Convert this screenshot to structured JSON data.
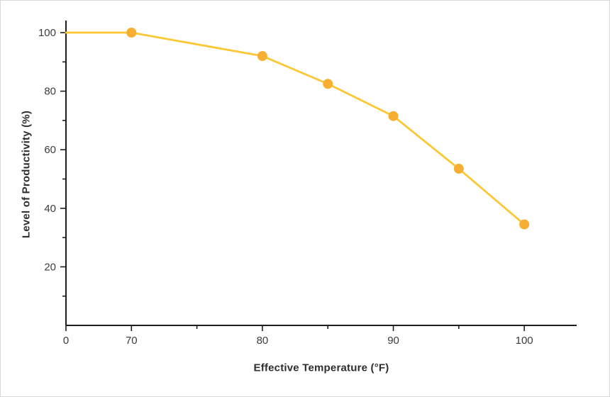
{
  "chart_data": {
    "type": "line",
    "title": "",
    "xlabel": "Effective Temperature (°F)",
    "ylabel": "Level of Productivity (%)",
    "x": [
      70,
      80,
      85,
      90,
      95,
      100
    ],
    "series": [
      {
        "name": "Level of Productivity",
        "values": [
          100,
          92,
          82.5,
          71.5,
          53.5,
          34.5
        ]
      }
    ],
    "line_starts_at_y_axis_value": 100,
    "x_axis": {
      "ticks": [
        0,
        70,
        75,
        80,
        85,
        90,
        95,
        100
      ],
      "labeled_ticks": [
        0,
        70,
        80,
        90,
        100
      ],
      "broken_scale_domain": [
        65,
        104
      ]
    },
    "y_axis": {
      "ticks": [
        10,
        20,
        30,
        40,
        50,
        60,
        70,
        80,
        90,
        100
      ],
      "labeled_ticks": [
        20,
        40,
        60,
        80,
        100
      ],
      "range": [
        0,
        105
      ]
    },
    "colors": {
      "line": "#FCC733",
      "marker": "#F7AF33",
      "axis": "#1E1E1C",
      "tick_label": "#3C3C3B"
    },
    "grid": false,
    "legend": false
  }
}
